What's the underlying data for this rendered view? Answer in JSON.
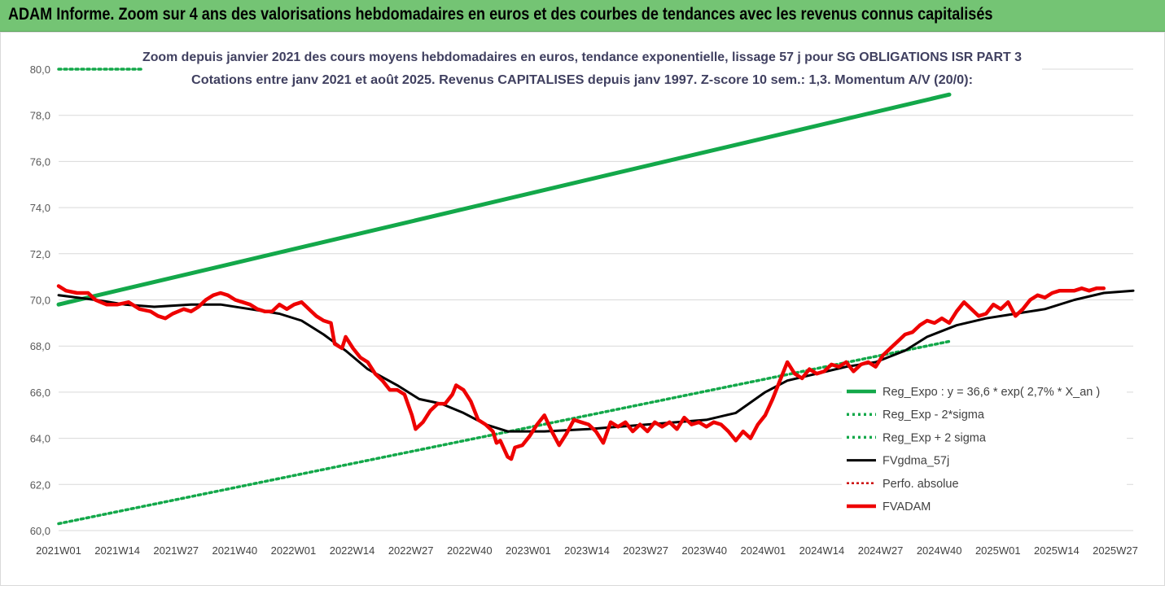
{
  "banner": {
    "title": "ADAM Informe. Zoom sur 4 ans des valorisations hebdomadaires en euros et des courbes de tendances avec les revenus connus capitalisés"
  },
  "colors": {
    "banner_bg": "#74c474",
    "trend_green": "#13a84a",
    "fvadam_red": "#ee0000",
    "fvgdma_black": "#000000",
    "perfo_dotted_red": "#cc0000"
  },
  "chart_data": {
    "type": "line",
    "title": "Zoom depuis janvier 2021 des cours moyens hebdomadaires en euros, tendance exponentielle, lissage 57 j pour SG OBLIGATIONS ISR PART 3",
    "subtitle": "Cotations entre janv 2021 et août 2025. Revenus CAPITALISES depuis janv 1997. Z-score 10 sem.: 1,3. Momentum A/V (20/0):",
    "xlabel": "",
    "ylabel": "",
    "ylim": [
      60,
      80
    ],
    "yticks": [
      "60,0",
      "62,0",
      "64,0",
      "66,0",
      "68,0",
      "70,0",
      "72,0",
      "74,0",
      "76,0",
      "78,0",
      "80,0"
    ],
    "xticks": [
      "2021W01",
      "2021W14",
      "2021W27",
      "2021W40",
      "2022W01",
      "2022W14",
      "2022W27",
      "2022W40",
      "2023W01",
      "2023W14",
      "2023W27",
      "2023W40",
      "2024W01",
      "2024W14",
      "2024W27",
      "2024W40",
      "2025W01",
      "2025W14",
      "2025W27"
    ],
    "grid": "horizontal",
    "legend_position": "bottom-right",
    "series": [
      {
        "name": "Reg_Expo : y = 36,6 * exp( 2,7% * X_an )",
        "style": "solid-green-thick",
        "points": [
          [
            0,
            69.8
          ],
          [
            242,
            78.9
          ]
        ]
      },
      {
        "name": "Reg_Exp - 2*sigma",
        "style": "dotted-green",
        "points": [
          [
            0,
            60.3
          ],
          [
            242,
            68.2
          ]
        ]
      },
      {
        "name": "Reg_Exp + 2 sigma",
        "style": "dotted-green",
        "points": [
          [
            0,
            80.0
          ],
          [
            242,
            80.0
          ]
        ]
      },
      {
        "name": "FVgdma_57j",
        "style": "solid-black",
        "points": [
          [
            0,
            70.2
          ],
          [
            10,
            70.0
          ],
          [
            18,
            69.8
          ],
          [
            26,
            69.7
          ],
          [
            36,
            69.8
          ],
          [
            44,
            69.8
          ],
          [
            52,
            69.6
          ],
          [
            60,
            69.4
          ],
          [
            66,
            69.1
          ],
          [
            72,
            68.5
          ],
          [
            78,
            67.8
          ],
          [
            84,
            67.0
          ],
          [
            92,
            66.3
          ],
          [
            98,
            65.7
          ],
          [
            104,
            65.5
          ],
          [
            110,
            65.1
          ],
          [
            116,
            64.6
          ],
          [
            122,
            64.3
          ],
          [
            132,
            64.3
          ],
          [
            144,
            64.4
          ],
          [
            160,
            64.6
          ],
          [
            168,
            64.7
          ],
          [
            176,
            64.8
          ],
          [
            184,
            65.1
          ],
          [
            192,
            66.0
          ],
          [
            198,
            66.5
          ],
          [
            206,
            66.8
          ],
          [
            214,
            67.1
          ],
          [
            222,
            67.3
          ],
          [
            230,
            67.8
          ],
          [
            236,
            68.4
          ],
          [
            244,
            68.9
          ],
          [
            252,
            69.2
          ],
          [
            260,
            69.4
          ],
          [
            268,
            69.6
          ],
          [
            276,
            70.0
          ],
          [
            284,
            70.3
          ],
          [
            292,
            70.4
          ]
        ]
      },
      {
        "name": "Perfo. absolue",
        "style": "dotted-red",
        "points": []
      },
      {
        "name": "FVADAM",
        "style": "solid-red-thick",
        "points": [
          [
            0,
            70.6
          ],
          [
            2,
            70.4
          ],
          [
            5,
            70.3
          ],
          [
            8,
            70.3
          ],
          [
            10,
            70.0
          ],
          [
            13,
            69.8
          ],
          [
            16,
            69.8
          ],
          [
            19,
            69.9
          ],
          [
            22,
            69.6
          ],
          [
            25,
            69.5
          ],
          [
            27,
            69.3
          ],
          [
            29,
            69.2
          ],
          [
            31,
            69.4
          ],
          [
            34,
            69.6
          ],
          [
            36,
            69.5
          ],
          [
            38,
            69.7
          ],
          [
            40,
            70.0
          ],
          [
            42,
            70.2
          ],
          [
            44,
            70.3
          ],
          [
            46,
            70.2
          ],
          [
            48,
            70.0
          ],
          [
            50,
            69.9
          ],
          [
            52,
            69.8
          ],
          [
            54,
            69.6
          ],
          [
            56,
            69.5
          ],
          [
            58,
            69.5
          ],
          [
            60,
            69.8
          ],
          [
            62,
            69.6
          ],
          [
            64,
            69.8
          ],
          [
            66,
            69.9
          ],
          [
            68,
            69.6
          ],
          [
            70,
            69.3
          ],
          [
            72,
            69.1
          ],
          [
            74,
            69.0
          ],
          [
            75,
            68.1
          ],
          [
            77,
            67.9
          ],
          [
            78,
            68.4
          ],
          [
            80,
            67.9
          ],
          [
            82,
            67.5
          ],
          [
            84,
            67.3
          ],
          [
            86,
            66.8
          ],
          [
            88,
            66.5
          ],
          [
            90,
            66.1
          ],
          [
            92,
            66.1
          ],
          [
            94,
            65.9
          ],
          [
            96,
            65.0
          ],
          [
            97,
            64.4
          ],
          [
            99,
            64.7
          ],
          [
            101,
            65.2
          ],
          [
            103,
            65.5
          ],
          [
            105,
            65.5
          ],
          [
            107,
            65.9
          ],
          [
            108,
            66.3
          ],
          [
            110,
            66.1
          ],
          [
            112,
            65.6
          ],
          [
            114,
            64.8
          ],
          [
            116,
            64.6
          ],
          [
            118,
            64.3
          ],
          [
            119,
            63.8
          ],
          [
            120,
            63.9
          ],
          [
            122,
            63.2
          ],
          [
            123,
            63.1
          ],
          [
            124,
            63.6
          ],
          [
            126,
            63.7
          ],
          [
            128,
            64.1
          ],
          [
            130,
            64.6
          ],
          [
            132,
            65.0
          ],
          [
            134,
            64.3
          ],
          [
            136,
            63.7
          ],
          [
            138,
            64.2
          ],
          [
            140,
            64.8
          ],
          [
            142,
            64.7
          ],
          [
            144,
            64.6
          ],
          [
            146,
            64.3
          ],
          [
            148,
            63.8
          ],
          [
            150,
            64.7
          ],
          [
            152,
            64.5
          ],
          [
            154,
            64.7
          ],
          [
            156,
            64.3
          ],
          [
            158,
            64.6
          ],
          [
            160,
            64.3
          ],
          [
            162,
            64.7
          ],
          [
            164,
            64.5
          ],
          [
            166,
            64.7
          ],
          [
            168,
            64.4
          ],
          [
            170,
            64.9
          ],
          [
            172,
            64.6
          ],
          [
            174,
            64.7
          ],
          [
            176,
            64.5
          ],
          [
            178,
            64.7
          ],
          [
            180,
            64.6
          ],
          [
            182,
            64.3
          ],
          [
            184,
            63.9
          ],
          [
            186,
            64.3
          ],
          [
            188,
            64.0
          ],
          [
            190,
            64.6
          ],
          [
            192,
            65.0
          ],
          [
            194,
            65.7
          ],
          [
            196,
            66.5
          ],
          [
            198,
            67.3
          ],
          [
            200,
            66.8
          ],
          [
            202,
            66.6
          ],
          [
            204,
            67.0
          ],
          [
            206,
            66.8
          ],
          [
            208,
            66.9
          ],
          [
            210,
            67.2
          ],
          [
            212,
            67.1
          ],
          [
            214,
            67.3
          ],
          [
            216,
            66.9
          ],
          [
            218,
            67.2
          ],
          [
            220,
            67.3
          ],
          [
            222,
            67.1
          ],
          [
            224,
            67.6
          ],
          [
            226,
            67.9
          ],
          [
            228,
            68.2
          ],
          [
            230,
            68.5
          ],
          [
            232,
            68.6
          ],
          [
            234,
            68.9
          ],
          [
            236,
            69.1
          ],
          [
            238,
            69.0
          ],
          [
            240,
            69.2
          ],
          [
            242,
            69.0
          ],
          [
            244,
            69.5
          ],
          [
            246,
            69.9
          ],
          [
            248,
            69.6
          ],
          [
            250,
            69.3
          ],
          [
            252,
            69.4
          ],
          [
            254,
            69.8
          ],
          [
            256,
            69.6
          ],
          [
            258,
            69.9
          ],
          [
            260,
            69.3
          ],
          [
            262,
            69.6
          ],
          [
            264,
            70.0
          ],
          [
            266,
            70.2
          ],
          [
            268,
            70.1
          ],
          [
            270,
            70.3
          ],
          [
            272,
            70.4
          ],
          [
            274,
            70.4
          ],
          [
            276,
            70.4
          ],
          [
            278,
            70.5
          ],
          [
            280,
            70.4
          ],
          [
            282,
            70.5
          ],
          [
            284,
            70.5
          ]
        ]
      }
    ]
  }
}
